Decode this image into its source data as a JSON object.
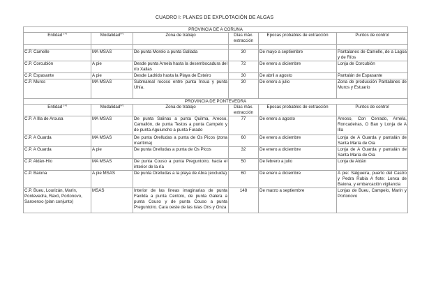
{
  "title": "CUADRO I: PLANES DE EXPLOTACIÓN DE ALGAS",
  "headers": {
    "entidad": "Entidad",
    "entidad_sup": "(1)",
    "modalidad": "Modalidad",
    "modalidad_sup": "(2)",
    "zona": "Zona de trabajo",
    "dias": "Días máx. extracción",
    "epocas": "Epocas probables de extracción",
    "puntos": "Puntos de control"
  },
  "sections": [
    {
      "province": "PROVINCIA DE A CORUÑA",
      "rows": [
        {
          "entidad": "C.P. Camelle",
          "modalidad": "MA MSAS",
          "zona": "De punta Morelo a punta Gallada",
          "dias": "30",
          "epocas": "De mayo a septiembre",
          "puntos": "Pantalanes de Camelle, de a Lagoa y de Ríos"
        },
        {
          "entidad": "C.P. Corcubión",
          "modalidad": "A pie",
          "zona": "Desde punta Arnela hasta la desembocadura del río Xallas",
          "dias": "72",
          "epocas": "De enero a diciembre",
          "puntos": "Lonja de Corcubión"
        },
        {
          "entidad": "C.P. Espasante",
          "modalidad": "A pie",
          "zona": "Desde Ladrido hasta la Playa de Esteiro",
          "dias": "30",
          "epocas": "De abril a agosto",
          "puntos": "Pantalán de Espasante"
        },
        {
          "entidad": "C.P. Muros",
          "modalidad": "MA MSAS",
          "zona": "Submareal rocoso entre punta Ínsua y punta Uhía.",
          "dias": "30",
          "epocas": "De enero a julio",
          "puntos": "Zona de producción Pantalanes de Muros y Estuario"
        }
      ]
    },
    {
      "province": "PROVINCIA DE PONTEVEDRA",
      "rows": [
        {
          "entidad": "C.P. A Illa de Arousa",
          "modalidad": "MA MSAS",
          "zona": "De punta Salinas a punta Quilma, Areoso, Camallón, de punta Testos a punta Campelo y de punta Aguiuncho a punta Furado",
          "dias": "77",
          "epocas": "De enero a agosto",
          "puntos": "Areoso, Con Cerrado, Arnela, Roncadeiras, O Bao y Lonja de A Illa"
        },
        {
          "entidad": "C.P. A Guarda",
          "modalidad": "MA MSAS",
          "zona": "De punta Orelludas a punta de Os Picos (zona marítima)",
          "dias": "60",
          "epocas": "De enero a diciembre",
          "puntos": "Lonja de A Guarda y pantalán de Santa María de Oia"
        },
        {
          "entidad": "C.P. A Guarda",
          "modalidad": "A pie",
          "zona": "De punta Orelludas a punta de Os Picos",
          "dias": "32",
          "epocas": "De enero a diciembre",
          "puntos": "Lonja de A Guarda y pantalán de Santa María de Oia"
        },
        {
          "entidad": "C.P. Aldán-Hío",
          "modalidad": "MA MSAS",
          "zona": "De punta Couso a punta Preguntoiro, hacia el interior de la ría",
          "dias": "50",
          "epocas": "De febrero a julio",
          "puntos": "Lonja de Aldán"
        },
        {
          "entidad": "C.P. Baiona",
          "modalidad": "A pie MSAS",
          "zona": "De punta Orelludas a la playa de Abra (excluida)",
          "dias": "60",
          "epocas": "De enero a diciembre",
          "puntos": "A pie: Salgueira, puerto del Castro y Pedra Rubia A flote: Lonxa de Baiona, y embarcación vigilancia"
        },
        {
          "entidad": "C.P. Bueu, Lourizán, Marín, Pontevedra, Raxó, Portonovo, Sanxenxo (plan conjunto)",
          "modalidad": "MSAS",
          "zona": "Interior de las líneas imaginarias de punta Faxilda a punta Centolo, de punta Galera a punta Couso y de punta Couso a punta Preguntoiro. Cara oeste de las islas Ons y Onza",
          "dias": "148",
          "epocas": "De marzo a septiembre",
          "puntos": "Lonjas de Bueu, Campelo, Marín y Portonovo"
        }
      ]
    }
  ]
}
